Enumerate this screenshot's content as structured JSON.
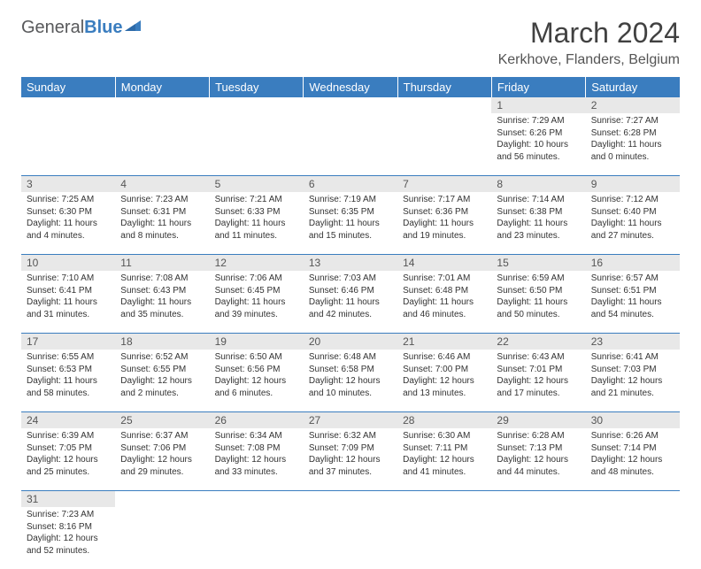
{
  "brand": {
    "part1": "General",
    "part2": "Blue"
  },
  "title": "March 2024",
  "location": "Kerkhove, Flanders, Belgium",
  "colors": {
    "header_bg": "#3a7dbf",
    "header_text": "#ffffff",
    "daynum_bg": "#e8e8e8",
    "daynum_text": "#555555",
    "cell_text": "#333333",
    "divider": "#3a7dbf",
    "page_bg": "#ffffff"
  },
  "weekdays": [
    "Sunday",
    "Monday",
    "Tuesday",
    "Wednesday",
    "Thursday",
    "Friday",
    "Saturday"
  ],
  "weeks": [
    [
      null,
      null,
      null,
      null,
      null,
      {
        "n": "1",
        "sr": "Sunrise: 7:29 AM",
        "ss": "Sunset: 6:26 PM",
        "dl": "Daylight: 10 hours and 56 minutes."
      },
      {
        "n": "2",
        "sr": "Sunrise: 7:27 AM",
        "ss": "Sunset: 6:28 PM",
        "dl": "Daylight: 11 hours and 0 minutes."
      }
    ],
    [
      {
        "n": "3",
        "sr": "Sunrise: 7:25 AM",
        "ss": "Sunset: 6:30 PM",
        "dl": "Daylight: 11 hours and 4 minutes."
      },
      {
        "n": "4",
        "sr": "Sunrise: 7:23 AM",
        "ss": "Sunset: 6:31 PM",
        "dl": "Daylight: 11 hours and 8 minutes."
      },
      {
        "n": "5",
        "sr": "Sunrise: 7:21 AM",
        "ss": "Sunset: 6:33 PM",
        "dl": "Daylight: 11 hours and 11 minutes."
      },
      {
        "n": "6",
        "sr": "Sunrise: 7:19 AM",
        "ss": "Sunset: 6:35 PM",
        "dl": "Daylight: 11 hours and 15 minutes."
      },
      {
        "n": "7",
        "sr": "Sunrise: 7:17 AM",
        "ss": "Sunset: 6:36 PM",
        "dl": "Daylight: 11 hours and 19 minutes."
      },
      {
        "n": "8",
        "sr": "Sunrise: 7:14 AM",
        "ss": "Sunset: 6:38 PM",
        "dl": "Daylight: 11 hours and 23 minutes."
      },
      {
        "n": "9",
        "sr": "Sunrise: 7:12 AM",
        "ss": "Sunset: 6:40 PM",
        "dl": "Daylight: 11 hours and 27 minutes."
      }
    ],
    [
      {
        "n": "10",
        "sr": "Sunrise: 7:10 AM",
        "ss": "Sunset: 6:41 PM",
        "dl": "Daylight: 11 hours and 31 minutes."
      },
      {
        "n": "11",
        "sr": "Sunrise: 7:08 AM",
        "ss": "Sunset: 6:43 PM",
        "dl": "Daylight: 11 hours and 35 minutes."
      },
      {
        "n": "12",
        "sr": "Sunrise: 7:06 AM",
        "ss": "Sunset: 6:45 PM",
        "dl": "Daylight: 11 hours and 39 minutes."
      },
      {
        "n": "13",
        "sr": "Sunrise: 7:03 AM",
        "ss": "Sunset: 6:46 PM",
        "dl": "Daylight: 11 hours and 42 minutes."
      },
      {
        "n": "14",
        "sr": "Sunrise: 7:01 AM",
        "ss": "Sunset: 6:48 PM",
        "dl": "Daylight: 11 hours and 46 minutes."
      },
      {
        "n": "15",
        "sr": "Sunrise: 6:59 AM",
        "ss": "Sunset: 6:50 PM",
        "dl": "Daylight: 11 hours and 50 minutes."
      },
      {
        "n": "16",
        "sr": "Sunrise: 6:57 AM",
        "ss": "Sunset: 6:51 PM",
        "dl": "Daylight: 11 hours and 54 minutes."
      }
    ],
    [
      {
        "n": "17",
        "sr": "Sunrise: 6:55 AM",
        "ss": "Sunset: 6:53 PM",
        "dl": "Daylight: 11 hours and 58 minutes."
      },
      {
        "n": "18",
        "sr": "Sunrise: 6:52 AM",
        "ss": "Sunset: 6:55 PM",
        "dl": "Daylight: 12 hours and 2 minutes."
      },
      {
        "n": "19",
        "sr": "Sunrise: 6:50 AM",
        "ss": "Sunset: 6:56 PM",
        "dl": "Daylight: 12 hours and 6 minutes."
      },
      {
        "n": "20",
        "sr": "Sunrise: 6:48 AM",
        "ss": "Sunset: 6:58 PM",
        "dl": "Daylight: 12 hours and 10 minutes."
      },
      {
        "n": "21",
        "sr": "Sunrise: 6:46 AM",
        "ss": "Sunset: 7:00 PM",
        "dl": "Daylight: 12 hours and 13 minutes."
      },
      {
        "n": "22",
        "sr": "Sunrise: 6:43 AM",
        "ss": "Sunset: 7:01 PM",
        "dl": "Daylight: 12 hours and 17 minutes."
      },
      {
        "n": "23",
        "sr": "Sunrise: 6:41 AM",
        "ss": "Sunset: 7:03 PM",
        "dl": "Daylight: 12 hours and 21 minutes."
      }
    ],
    [
      {
        "n": "24",
        "sr": "Sunrise: 6:39 AM",
        "ss": "Sunset: 7:05 PM",
        "dl": "Daylight: 12 hours and 25 minutes."
      },
      {
        "n": "25",
        "sr": "Sunrise: 6:37 AM",
        "ss": "Sunset: 7:06 PM",
        "dl": "Daylight: 12 hours and 29 minutes."
      },
      {
        "n": "26",
        "sr": "Sunrise: 6:34 AM",
        "ss": "Sunset: 7:08 PM",
        "dl": "Daylight: 12 hours and 33 minutes."
      },
      {
        "n": "27",
        "sr": "Sunrise: 6:32 AM",
        "ss": "Sunset: 7:09 PM",
        "dl": "Daylight: 12 hours and 37 minutes."
      },
      {
        "n": "28",
        "sr": "Sunrise: 6:30 AM",
        "ss": "Sunset: 7:11 PM",
        "dl": "Daylight: 12 hours and 41 minutes."
      },
      {
        "n": "29",
        "sr": "Sunrise: 6:28 AM",
        "ss": "Sunset: 7:13 PM",
        "dl": "Daylight: 12 hours and 44 minutes."
      },
      {
        "n": "30",
        "sr": "Sunrise: 6:26 AM",
        "ss": "Sunset: 7:14 PM",
        "dl": "Daylight: 12 hours and 48 minutes."
      }
    ],
    [
      {
        "n": "31",
        "sr": "Sunrise: 7:23 AM",
        "ss": "Sunset: 8:16 PM",
        "dl": "Daylight: 12 hours and 52 minutes."
      },
      null,
      null,
      null,
      null,
      null,
      null
    ]
  ]
}
